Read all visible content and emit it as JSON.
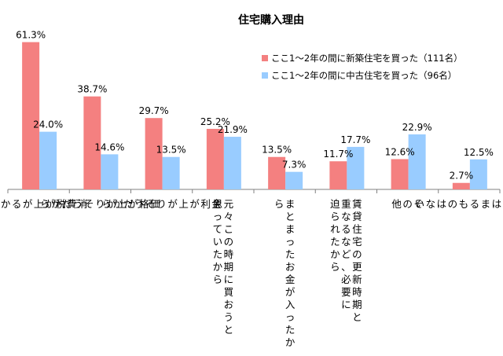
{
  "chart_data": {
    "type": "bar",
    "title": "住宅購入理由",
    "xlabel": "",
    "ylabel": "",
    "ylim": [
      0,
      70
    ],
    "grid": false,
    "legend_position": "top-right",
    "colors": {
      "new": "#f48080",
      "used": "#99ccff",
      "axis": "#808080"
    },
    "categories": [
      [
        "消",
        "費",
        "税",
        "が",
        "上",
        "が",
        "る",
        "か",
        "ら"
      ],
      [
        "価",
        "格",
        "が",
        "上",
        "が",
        "り",
        "そ",
        "う",
        "だ",
        "か",
        "ら"
      ],
      [
        "金",
        "利",
        "が",
        "上",
        "が",
        "り",
        "そ",
        "う",
        "だ",
        "か",
        "ら"
      ],
      [
        "元々この時期に買おうと",
        "思っていたから"
      ],
      [
        "まとまったお金が入ったか",
        "ら"
      ],
      [
        "賃貸住宅の更新時期と",
        "重なるなど、必要に",
        "迫られたから"
      ],
      [
        "そ",
        "の",
        "他"
      ],
      [
        "当",
        "て",
        "は",
        "ま",
        "る",
        "も",
        "の",
        "は",
        "な",
        "い"
      ]
    ],
    "series": [
      {
        "name": "ここ1～2年の間に新築住宅を買った（111名）",
        "color": "#f48080",
        "values": [
          61.3,
          38.7,
          29.7,
          25.2,
          13.5,
          11.7,
          12.6,
          2.7
        ],
        "labels": [
          "61.3%",
          "38.7%",
          "29.7%",
          "25.2%",
          "13.5%",
          "11.7%",
          "12.6%",
          "2.7%"
        ]
      },
      {
        "name": "ここ1～2年の間に中古住宅を買った（96名）",
        "color": "#99ccff",
        "values": [
          24.0,
          14.6,
          13.5,
          21.9,
          7.3,
          17.7,
          22.9,
          12.5
        ],
        "labels": [
          "24.0%",
          "14.6%",
          "13.5%",
          "21.9%",
          "7.3%",
          "17.7%",
          "22.9%",
          "12.5%"
        ]
      }
    ]
  }
}
